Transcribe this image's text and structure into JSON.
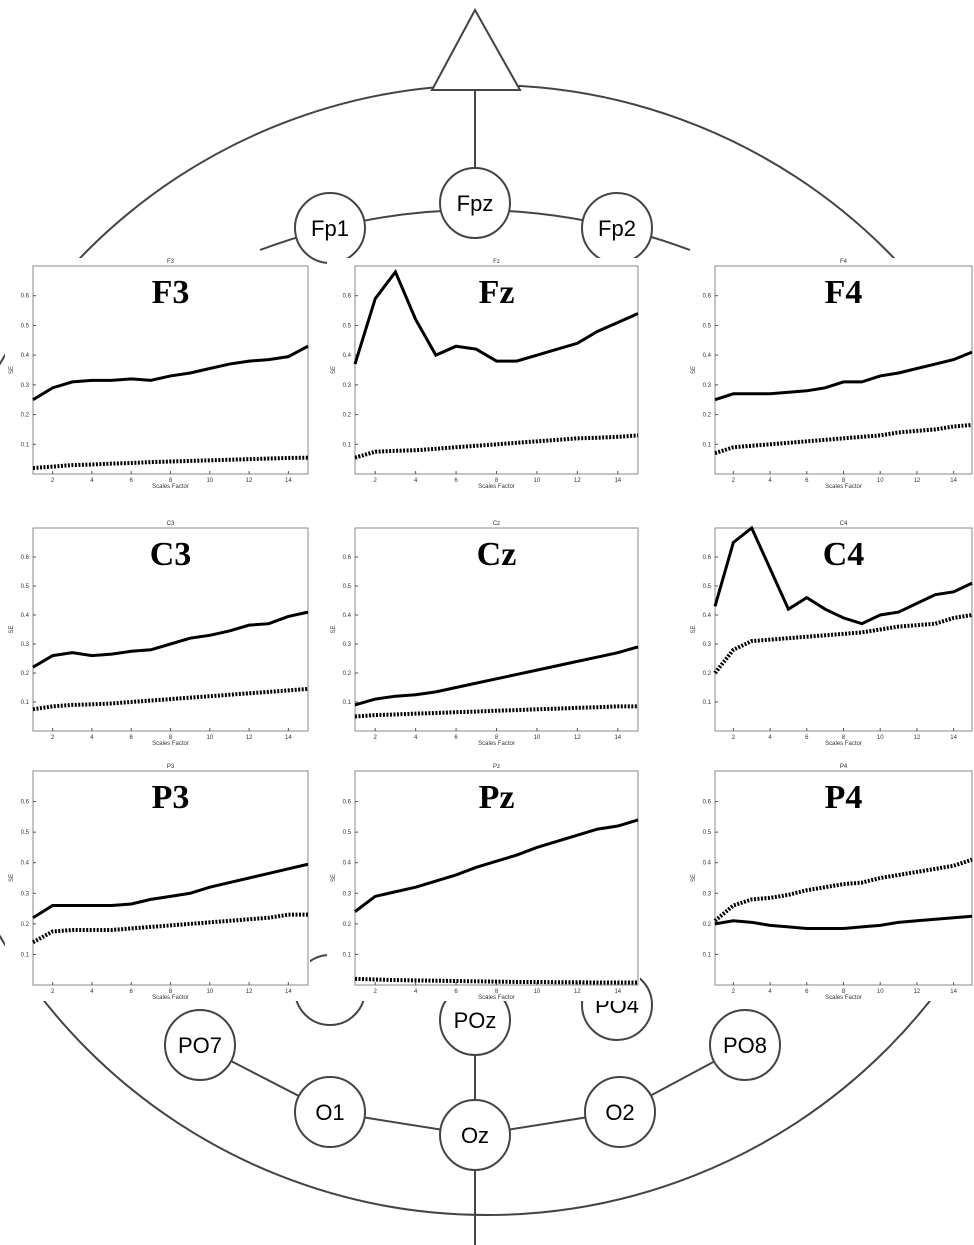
{
  "diagram": {
    "electrodes": [
      "Fp1",
      "Fpz",
      "Fp2",
      "PO7",
      "POz",
      "PO4",
      "PO8",
      "O1",
      "Oz",
      "O2"
    ]
  },
  "chart_data": [
    {
      "type": "line",
      "title": "F3",
      "label": "F3",
      "xlabel": "Scales Factor",
      "ylabel": "SE",
      "xlim": [
        1,
        15
      ],
      "ylim": [
        0,
        0.7
      ],
      "xticks": [
        2,
        4,
        6,
        8,
        10,
        12,
        14
      ],
      "yticks": [
        0.1,
        0.2,
        0.3,
        0.4,
        0.5,
        0.6
      ],
      "x": [
        1,
        2,
        3,
        4,
        5,
        6,
        7,
        8,
        9,
        10,
        11,
        12,
        13,
        14,
        15
      ],
      "series": [
        {
          "color": "#000000",
          "style": "solid",
          "values": [
            0.25,
            0.29,
            0.31,
            0.315,
            0.315,
            0.32,
            0.315,
            0.33,
            0.34,
            0.355,
            0.37,
            0.38,
            0.385,
            0.395,
            0.43
          ]
        },
        {
          "color": "#000000",
          "style": "dotted",
          "values": [
            0.02,
            0.025,
            0.03,
            0.032,
            0.035,
            0.037,
            0.04,
            0.042,
            0.044,
            0.046,
            0.048,
            0.05,
            0.052,
            0.054,
            0.055
          ]
        }
      ]
    },
    {
      "type": "line",
      "title": "Fz",
      "label": "Fz",
      "xlabel": "Scales Factor",
      "ylabel": "SE",
      "xlim": [
        1,
        15
      ],
      "ylim": [
        0,
        0.7
      ],
      "xticks": [
        2,
        4,
        6,
        8,
        10,
        12,
        14
      ],
      "yticks": [
        0.1,
        0.2,
        0.3,
        0.4,
        0.5,
        0.6
      ],
      "x": [
        1,
        2,
        3,
        4,
        5,
        6,
        7,
        8,
        9,
        10,
        11,
        12,
        13,
        14,
        15
      ],
      "series": [
        {
          "color": "#000000",
          "style": "solid",
          "values": [
            0.37,
            0.59,
            0.68,
            0.52,
            0.4,
            0.43,
            0.42,
            0.38,
            0.38,
            0.4,
            0.42,
            0.44,
            0.48,
            0.51,
            0.54
          ]
        },
        {
          "color": "#000000",
          "style": "dotted",
          "values": [
            0.055,
            0.075,
            0.078,
            0.08,
            0.085,
            0.09,
            0.095,
            0.1,
            0.105,
            0.11,
            0.115,
            0.12,
            0.122,
            0.125,
            0.13
          ]
        }
      ]
    },
    {
      "type": "line",
      "title": "F4",
      "label": "F4",
      "xlabel": "Scales Factor",
      "ylabel": "SE",
      "xlim": [
        1,
        15
      ],
      "ylim": [
        0,
        0.7
      ],
      "xticks": [
        2,
        4,
        6,
        8,
        10,
        12,
        14
      ],
      "yticks": [
        0.1,
        0.2,
        0.3,
        0.4,
        0.5,
        0.6
      ],
      "x": [
        1,
        2,
        3,
        4,
        5,
        6,
        7,
        8,
        9,
        10,
        11,
        12,
        13,
        14,
        15
      ],
      "series": [
        {
          "color": "#000000",
          "style": "solid",
          "values": [
            0.25,
            0.27,
            0.27,
            0.27,
            0.275,
            0.28,
            0.29,
            0.31,
            0.31,
            0.33,
            0.34,
            0.355,
            0.37,
            0.385,
            0.41
          ]
        },
        {
          "color": "#000000",
          "style": "dotted",
          "values": [
            0.07,
            0.09,
            0.095,
            0.1,
            0.105,
            0.11,
            0.115,
            0.12,
            0.125,
            0.13,
            0.14,
            0.145,
            0.15,
            0.16,
            0.165
          ]
        }
      ]
    },
    {
      "type": "line",
      "title": "C3",
      "label": "C3",
      "xlabel": "Scales Factor",
      "ylabel": "SE",
      "xlim": [
        1,
        15
      ],
      "ylim": [
        0,
        0.7
      ],
      "xticks": [
        2,
        4,
        6,
        8,
        10,
        12,
        14
      ],
      "yticks": [
        0.1,
        0.2,
        0.3,
        0.4,
        0.5,
        0.6
      ],
      "x": [
        1,
        2,
        3,
        4,
        5,
        6,
        7,
        8,
        9,
        10,
        11,
        12,
        13,
        14,
        15
      ],
      "series": [
        {
          "color": "#000000",
          "style": "solid",
          "values": [
            0.22,
            0.26,
            0.27,
            0.26,
            0.265,
            0.275,
            0.28,
            0.3,
            0.32,
            0.33,
            0.345,
            0.365,
            0.37,
            0.395,
            0.41
          ]
        },
        {
          "color": "#000000",
          "style": "dotted",
          "values": [
            0.075,
            0.085,
            0.09,
            0.092,
            0.095,
            0.1,
            0.105,
            0.11,
            0.115,
            0.12,
            0.125,
            0.13,
            0.135,
            0.14,
            0.145
          ]
        }
      ]
    },
    {
      "type": "line",
      "title": "Cz",
      "label": "Cz",
      "xlabel": "Scales Factor",
      "ylabel": "SE",
      "xlim": [
        1,
        15
      ],
      "ylim": [
        0,
        0.7
      ],
      "xticks": [
        2,
        4,
        6,
        8,
        10,
        12,
        14
      ],
      "yticks": [
        0.1,
        0.2,
        0.3,
        0.4,
        0.5,
        0.6
      ],
      "x": [
        1,
        2,
        3,
        4,
        5,
        6,
        7,
        8,
        9,
        10,
        11,
        12,
        13,
        14,
        15
      ],
      "series": [
        {
          "color": "#000000",
          "style": "solid",
          "values": [
            0.09,
            0.11,
            0.12,
            0.125,
            0.135,
            0.15,
            0.165,
            0.18,
            0.195,
            0.21,
            0.225,
            0.24,
            0.255,
            0.27,
            0.29
          ]
        },
        {
          "color": "#000000",
          "style": "dotted",
          "values": [
            0.05,
            0.055,
            0.057,
            0.06,
            0.062,
            0.065,
            0.067,
            0.07,
            0.072,
            0.075,
            0.077,
            0.08,
            0.082,
            0.085,
            0.085
          ]
        }
      ]
    },
    {
      "type": "line",
      "title": "C4",
      "label": "C4",
      "xlabel": "Scales Factor",
      "ylabel": "SE",
      "xlim": [
        1,
        15
      ],
      "ylim": [
        0,
        0.7
      ],
      "xticks": [
        2,
        4,
        6,
        8,
        10,
        12,
        14
      ],
      "yticks": [
        0.1,
        0.2,
        0.3,
        0.4,
        0.5,
        0.6
      ],
      "x": [
        1,
        2,
        3,
        4,
        5,
        6,
        7,
        8,
        9,
        10,
        11,
        12,
        13,
        14,
        15
      ],
      "series": [
        {
          "color": "#000000",
          "style": "solid",
          "values": [
            0.43,
            0.65,
            0.7,
            0.56,
            0.42,
            0.46,
            0.42,
            0.39,
            0.37,
            0.4,
            0.41,
            0.44,
            0.47,
            0.48,
            0.51
          ]
        },
        {
          "color": "#000000",
          "style": "dotted",
          "values": [
            0.2,
            0.28,
            0.31,
            0.315,
            0.32,
            0.325,
            0.33,
            0.335,
            0.34,
            0.35,
            0.36,
            0.365,
            0.37,
            0.39,
            0.4
          ]
        }
      ]
    },
    {
      "type": "line",
      "title": "P3",
      "label": "P3",
      "xlabel": "Scales Factor",
      "ylabel": "SE",
      "xlim": [
        1,
        15
      ],
      "ylim": [
        0,
        0.7
      ],
      "xticks": [
        2,
        4,
        6,
        8,
        10,
        12,
        14
      ],
      "yticks": [
        0.1,
        0.2,
        0.3,
        0.4,
        0.5,
        0.6
      ],
      "x": [
        1,
        2,
        3,
        4,
        5,
        6,
        7,
        8,
        9,
        10,
        11,
        12,
        13,
        14,
        15
      ],
      "series": [
        {
          "color": "#000000",
          "style": "solid",
          "values": [
            0.22,
            0.26,
            0.26,
            0.26,
            0.26,
            0.265,
            0.28,
            0.29,
            0.3,
            0.32,
            0.335,
            0.35,
            0.365,
            0.38,
            0.395
          ]
        },
        {
          "color": "#000000",
          "style": "dotted",
          "values": [
            0.14,
            0.175,
            0.18,
            0.18,
            0.18,
            0.185,
            0.19,
            0.195,
            0.2,
            0.205,
            0.21,
            0.215,
            0.22,
            0.23,
            0.23
          ]
        }
      ]
    },
    {
      "type": "line",
      "title": "Pz",
      "label": "Pz",
      "xlabel": "Scales Factor",
      "ylabel": "SE",
      "xlim": [
        1,
        15
      ],
      "ylim": [
        0,
        0.7
      ],
      "xticks": [
        2,
        4,
        6,
        8,
        10,
        12,
        14
      ],
      "yticks": [
        0.1,
        0.2,
        0.3,
        0.4,
        0.5,
        0.6
      ],
      "x": [
        1,
        2,
        3,
        4,
        5,
        6,
        7,
        8,
        9,
        10,
        11,
        12,
        13,
        14,
        15
      ],
      "series": [
        {
          "color": "#000000",
          "style": "solid",
          "values": [
            0.24,
            0.29,
            0.305,
            0.32,
            0.34,
            0.36,
            0.385,
            0.405,
            0.425,
            0.45,
            0.47,
            0.49,
            0.51,
            0.52,
            0.54
          ]
        },
        {
          "color": "#000000",
          "style": "dotted",
          "values": [
            0.02,
            0.018,
            0.016,
            0.015,
            0.014,
            0.013,
            0.012,
            0.011,
            0.01,
            0.01,
            0.009,
            0.009,
            0.008,
            0.008,
            0.008
          ]
        }
      ]
    },
    {
      "type": "line",
      "title": "P4",
      "label": "P4",
      "xlabel": "Scales Factor",
      "ylabel": "SE",
      "xlim": [
        1,
        15
      ],
      "ylim": [
        0,
        0.7
      ],
      "xticks": [
        2,
        4,
        6,
        8,
        10,
        12,
        14
      ],
      "yticks": [
        0.1,
        0.2,
        0.3,
        0.4,
        0.5,
        0.6
      ],
      "x": [
        1,
        2,
        3,
        4,
        5,
        6,
        7,
        8,
        9,
        10,
        11,
        12,
        13,
        14,
        15
      ],
      "series": [
        {
          "color": "#000000",
          "style": "solid",
          "values": [
            0.2,
            0.21,
            0.205,
            0.195,
            0.19,
            0.185,
            0.185,
            0.185,
            0.19,
            0.195,
            0.205,
            0.21,
            0.215,
            0.22,
            0.225
          ]
        },
        {
          "color": "#000000",
          "style": "dotted",
          "values": [
            0.21,
            0.26,
            0.28,
            0.285,
            0.295,
            0.31,
            0.32,
            0.33,
            0.335,
            0.35,
            0.36,
            0.37,
            0.38,
            0.39,
            0.41
          ]
        }
      ]
    }
  ]
}
